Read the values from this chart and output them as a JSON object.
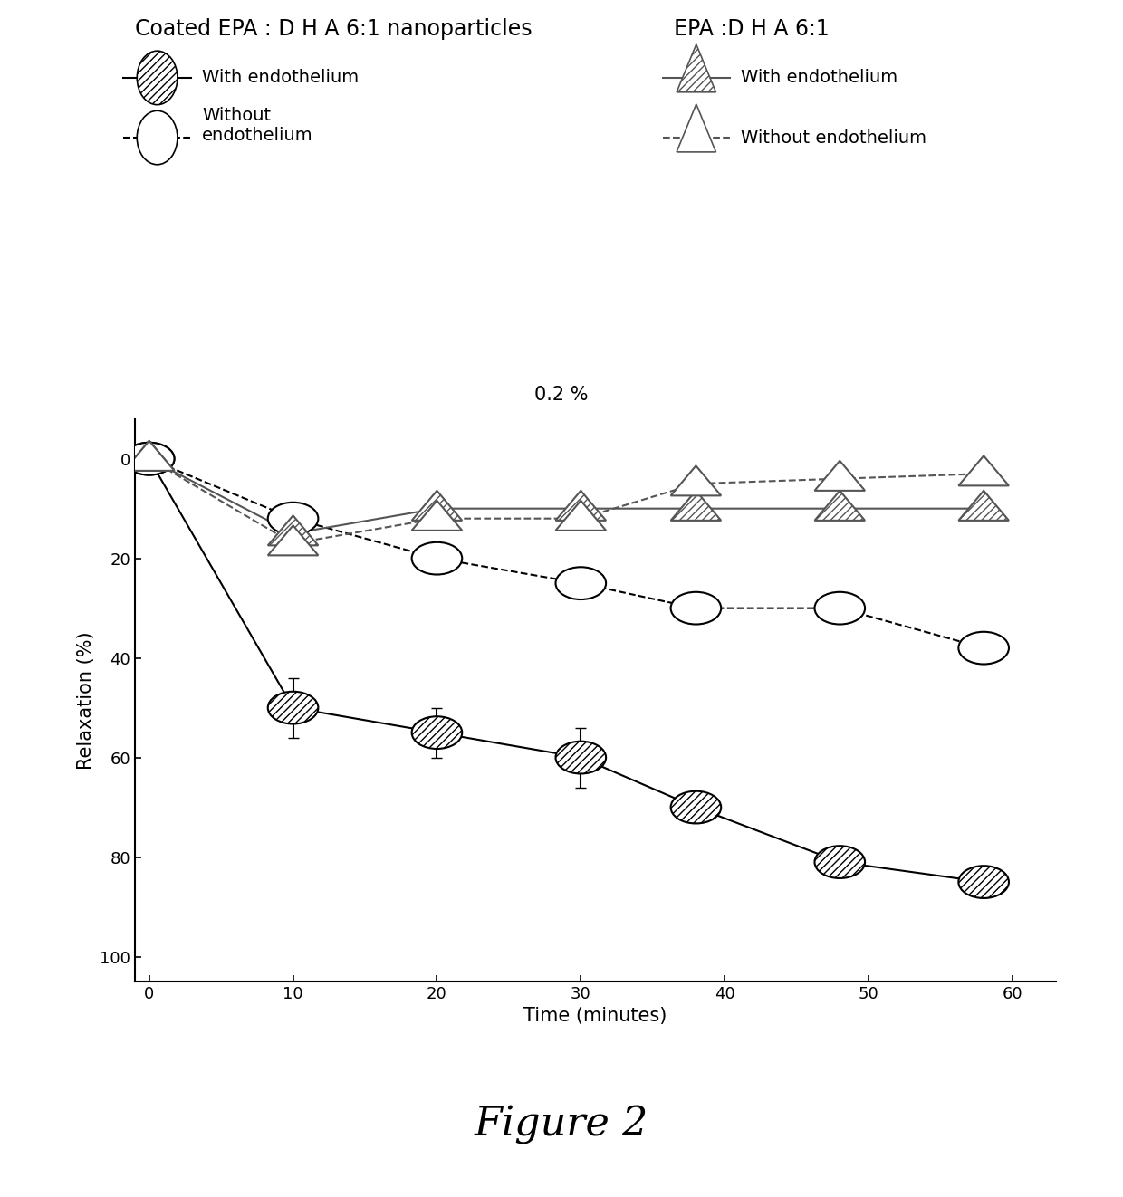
{
  "title_left": "Coated EPA : D H A 6:1 nanoparticles",
  "title_right": "EPA :D H A 6:1",
  "annotation": "0.2 %",
  "xlabel": "Time (minutes)",
  "ylabel": "Relaxation (%)",
  "figure_label": "Figure 2",
  "xlim": [
    -1,
    63
  ],
  "ylim": [
    105,
    -8
  ],
  "xticks": [
    0,
    10,
    20,
    30,
    40,
    50,
    60
  ],
  "yticks": [
    0,
    20,
    40,
    60,
    80,
    100
  ],
  "x": [
    0,
    10,
    20,
    30,
    38,
    48,
    58
  ],
  "coated_with_y": [
    0,
    50,
    55,
    60,
    70,
    81,
    85
  ],
  "coated_with_err": [
    0.5,
    6,
    5,
    6,
    3,
    3,
    3
  ],
  "coated_without_y": [
    0,
    12,
    20,
    25,
    30,
    30,
    38
  ],
  "coated_without_err": [
    0.5,
    2,
    2,
    2,
    2,
    2,
    3
  ],
  "epa_with_y": [
    0,
    15,
    10,
    10,
    10,
    10,
    10
  ],
  "epa_with_err": [
    0.5,
    1,
    1,
    1,
    1,
    1,
    1
  ],
  "epa_without_y": [
    0,
    17,
    12,
    12,
    5,
    4,
    3
  ],
  "epa_without_err": [
    0.5,
    1,
    1,
    1,
    1,
    1,
    1
  ],
  "color_black": "#000000",
  "color_gray": "#555555",
  "background_color": "#ffffff",
  "fontsize_title": 17,
  "fontsize_axis": 15,
  "fontsize_ticks": 13,
  "fontsize_legend": 14,
  "fontsize_annotation": 15,
  "fontsize_figure_label": 32
}
